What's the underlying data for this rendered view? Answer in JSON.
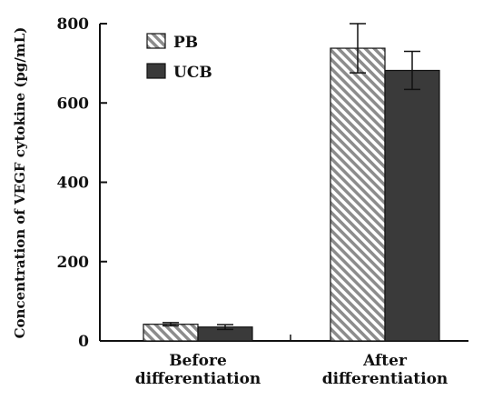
{
  "chart_data": {
    "type": "bar",
    "ylabel": "Concentration of VEGF cytokine (pg/mL)",
    "xlabel": "",
    "ylim": [
      0,
      800
    ],
    "yticks": [
      0,
      200,
      400,
      600,
      800
    ],
    "grid": false,
    "legend_position": "top-left",
    "categories": [
      {
        "lines": [
          "Before",
          "differentiation"
        ]
      },
      {
        "lines": [
          "After",
          "differentiation"
        ]
      }
    ],
    "series": [
      {
        "name": "PB",
        "values": [
          42,
          738
        ],
        "errors": [
          4,
          62
        ],
        "fill": "hatched",
        "color": "#d9d9d9"
      },
      {
        "name": "UCB",
        "values": [
          35,
          682
        ],
        "errors": [
          6,
          48
        ],
        "fill": "solid",
        "color": "#3a3a3a"
      }
    ]
  }
}
